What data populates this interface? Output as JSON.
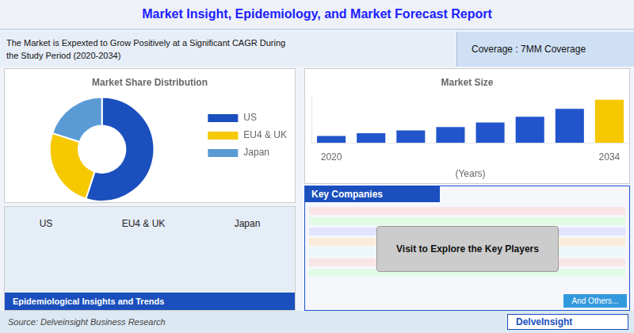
{
  "title": "Market Insight, Epidemiology, and Market Forecast Report",
  "subtitle": [
    "The Market is Expexted to Grow Positively at a Significant CAGR During",
    "the Study Period (2020-2034)"
  ],
  "annotations": [
    "Coverage : 7MM Coverage",
    "US",
    "EU4 & UK",
    "Japan",
    "Epidemiological Insights and Trends",
    "Key Companies",
    "Visit to Explore the Key Players",
    "And Others...",
    "Source: Delveinsight Business Research",
    "DelveInsight"
  ],
  "chart_data": [
    {
      "type": "doughnut",
      "title": "Market Share Distribution",
      "categories": [
        "US",
        "EU4 & UK",
        "Japan"
      ],
      "values": [
        0.55,
        0.25,
        0.2
      ],
      "colors": [
        "#1a4fbd",
        "#f5c800",
        "#5b9bd5"
      ],
      "legend": "right"
    },
    {
      "type": "bar",
      "title": "Market Size",
      "categories": [
        "2020",
        null,
        null,
        null,
        null,
        null,
        null,
        "2034"
      ],
      "values": [
        0.6,
        0.85,
        1.1,
        1.4,
        1.8,
        2.3,
        3.0,
        3.8
      ],
      "colors": [
        "#2255cc",
        "#2255cc",
        "#2255cc",
        "#2255cc",
        "#2255cc",
        "#2255cc",
        "#2255cc",
        "#f5c800"
      ],
      "xlabel": "(Years)",
      "ylim": [
        0,
        4.104
      ],
      "tick_labels": "x",
      "grid": false
    }
  ]
}
